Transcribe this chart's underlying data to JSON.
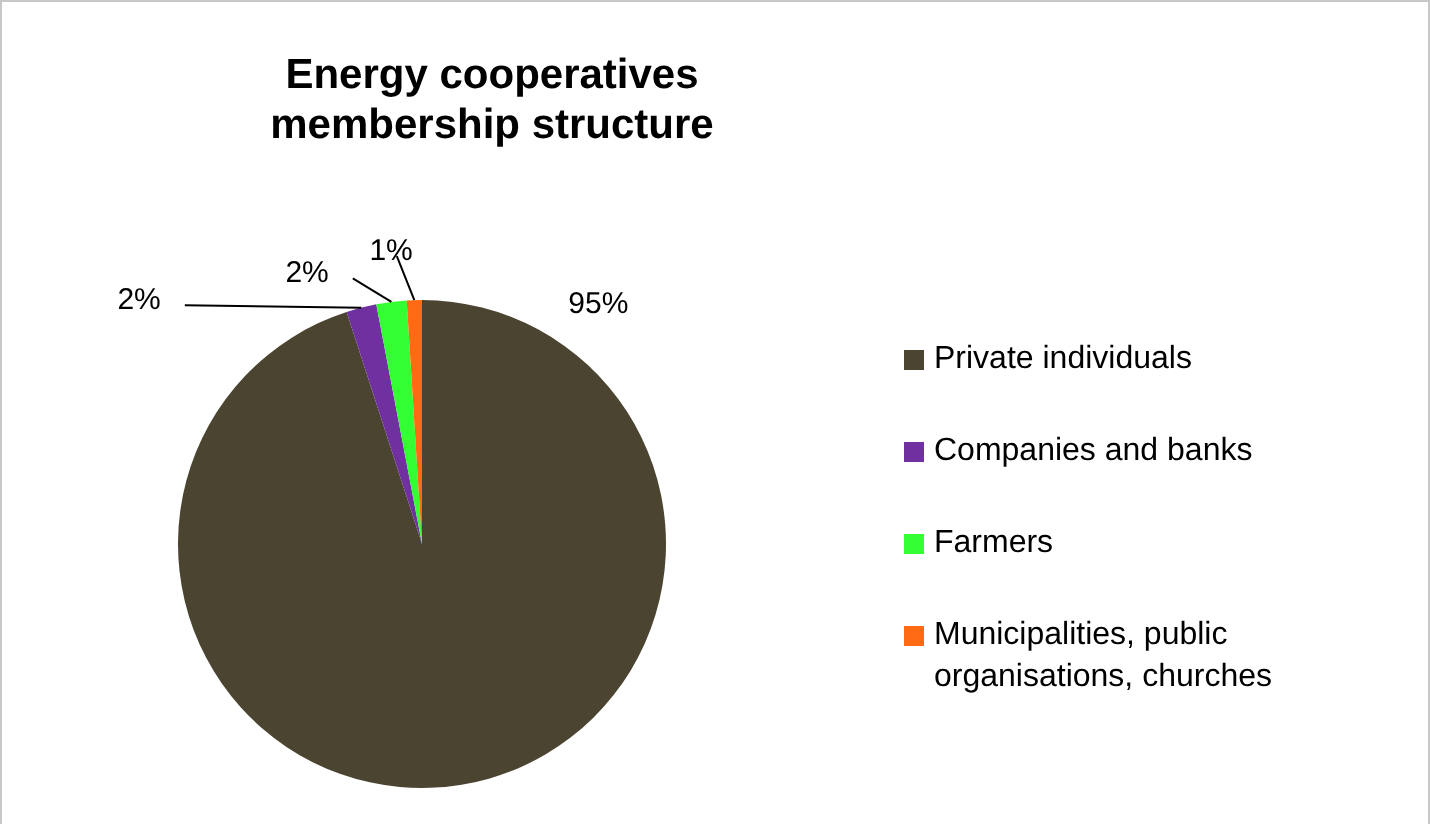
{
  "chart_data": {
    "type": "pie",
    "title": "Energy cooperatives membership structure",
    "categories": [
      "Private individuals",
      "Companies and banks",
      "Farmers",
      "Municipalities, public organisations, churches"
    ],
    "values": [
      95,
      2,
      2,
      1
    ],
    "colors": [
      "#4a4431",
      "#7030a0",
      "#33ff33",
      "#ff6a13"
    ],
    "value_labels": [
      "95%",
      "2%",
      "2%",
      "1%"
    ],
    "legend": "right"
  }
}
